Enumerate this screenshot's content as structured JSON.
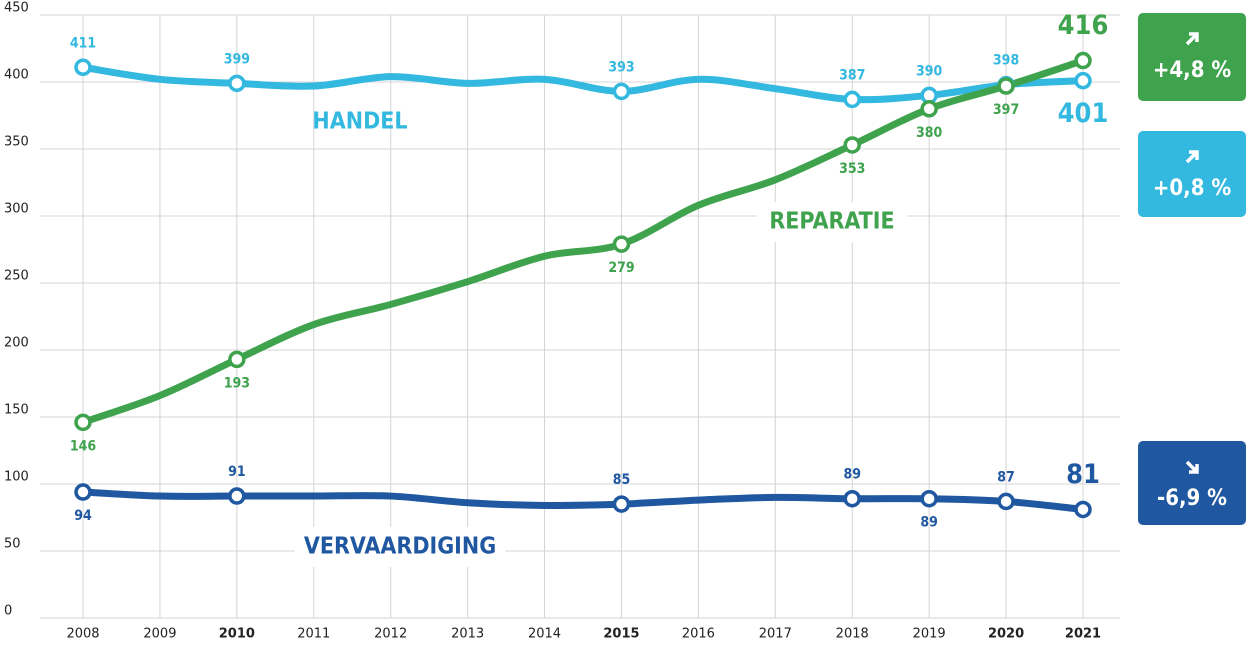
{
  "chart_data": {
    "type": "line",
    "categories": [
      "2008",
      "2009",
      "2010",
      "2011",
      "2012",
      "2013",
      "2014",
      "2015",
      "2016",
      "2017",
      "2018",
      "2019",
      "2020",
      "2021"
    ],
    "ylim": [
      0,
      450
    ],
    "yticks": [
      0,
      50,
      100,
      150,
      200,
      250,
      300,
      350,
      400,
      450
    ],
    "grid": true,
    "series": [
      {
        "name": "HANDEL",
        "color": "#33b8e0",
        "change": "+0,8 %",
        "values": [
          411,
          402,
          399,
          397,
          404,
          399,
          402,
          393,
          402,
          395,
          387,
          390,
          398,
          401
        ],
        "value_labels": [
          "411",
          null,
          "399",
          null,
          null,
          null,
          null,
          "393",
          null,
          null,
          "387",
          "390",
          "398",
          "401"
        ]
      },
      {
        "name": "REPARATIE",
        "color": "#3fa34d",
        "change": "+4,8 %",
        "values": [
          146,
          166,
          193,
          219,
          234,
          251,
          270,
          279,
          308,
          327,
          353,
          380,
          397,
          416
        ],
        "value_labels": [
          "146",
          null,
          "193",
          null,
          null,
          null,
          null,
          "279",
          null,
          null,
          "353",
          "380",
          "397",
          "416"
        ]
      },
      {
        "name": "VERVAARDIGING",
        "color": "#1f57a0",
        "change": "-6,9 %",
        "values": [
          94,
          91,
          91,
          91,
          91,
          86,
          84,
          85,
          88,
          90,
          89,
          89,
          87,
          81
        ],
        "value_labels": [
          "94",
          null,
          "91",
          null,
          null,
          null,
          null,
          "85",
          null,
          null,
          "89",
          "89",
          "87",
          "81"
        ]
      }
    ]
  }
}
